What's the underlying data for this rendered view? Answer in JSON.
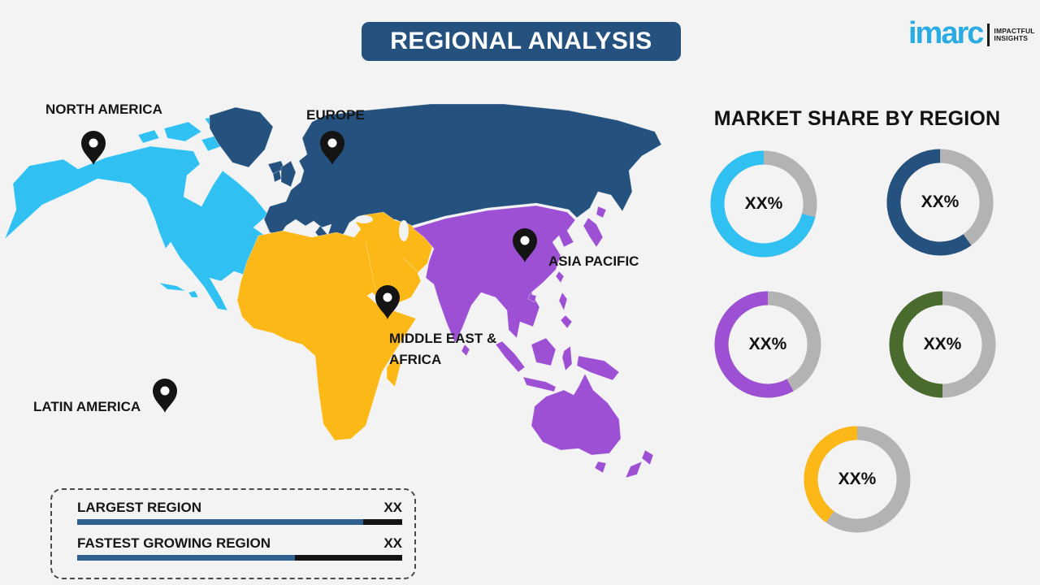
{
  "page": {
    "background": "#f2f3f2"
  },
  "title_banner": {
    "text": "REGIONAL ANALYSIS",
    "background": "#24517e",
    "text_color": "#ffffff"
  },
  "logo": {
    "brand": "imarc",
    "brand_color": "#2aace2",
    "tagline_line1": "IMPACTFUL",
    "tagline_line2": "INSIGHTS"
  },
  "map": {
    "regions": [
      {
        "id": "north-america",
        "label": "NORTH AMERICA",
        "color": "#30c1f2"
      },
      {
        "id": "europe",
        "label": "EUROPE",
        "color": "#24517e"
      },
      {
        "id": "asia-pacific",
        "label": "ASIA PACIFIC",
        "color": "#9d50d4"
      },
      {
        "id": "middle-east-africa",
        "label_line1": "MIDDLE EAST &",
        "label_line2": "AFRICA",
        "color": "#fcb816"
      },
      {
        "id": "latin-america",
        "label": "LATIN AMERICA",
        "color": "#4a6b2e"
      }
    ],
    "pin_color": "#141414"
  },
  "market_share": {
    "heading": "MARKET SHARE BY REGION",
    "track_color": "#b3b3b3",
    "donuts": [
      {
        "region": "North America",
        "value_label": "XX%",
        "color": "#30c1f2",
        "fraction": 0.71
      },
      {
        "region": "Europe",
        "value_label": "XX%",
        "color": "#24517e",
        "fraction": 0.6
      },
      {
        "region": "Asia Pacific",
        "value_label": "XX%",
        "color": "#9d50d4",
        "fraction": 0.58
      },
      {
        "region": "Latin America",
        "value_label": "XX%",
        "color": "#4a6b2e",
        "fraction": 0.5
      },
      {
        "region": "Middle East & Africa",
        "value_label": "XX%",
        "color": "#fcb816",
        "fraction": 0.4
      }
    ]
  },
  "legend": {
    "rows": [
      {
        "label": "LARGEST REGION",
        "value": "XX",
        "bar_fill": 0.88,
        "bar_color": "#2e618f",
        "bar_rest_color": "#141414"
      },
      {
        "label": "FASTEST GROWING REGION",
        "value": "XX",
        "bar_fill": 0.67,
        "bar_color": "#2e618f",
        "bar_rest_color": "#141414"
      }
    ]
  },
  "chart_data": [
    {
      "type": "pie",
      "title": "Market share — North America donut",
      "slices": [
        {
          "label": "XX%",
          "fraction": 0.71,
          "color": "#30c1f2"
        },
        {
          "label": "remainder",
          "fraction": 0.29,
          "color": "#b3b3b3"
        }
      ],
      "center_label": "XX%"
    },
    {
      "type": "pie",
      "title": "Market share — Europe donut",
      "slices": [
        {
          "label": "XX%",
          "fraction": 0.6,
          "color": "#24517e"
        },
        {
          "label": "remainder",
          "fraction": 0.4,
          "color": "#b3b3b3"
        }
      ],
      "center_label": "XX%"
    },
    {
      "type": "pie",
      "title": "Market share — Asia Pacific donut",
      "slices": [
        {
          "label": "XX%",
          "fraction": 0.58,
          "color": "#9d50d4"
        },
        {
          "label": "remainder",
          "fraction": 0.42,
          "color": "#b3b3b3"
        }
      ],
      "center_label": "XX%"
    },
    {
      "type": "pie",
      "title": "Market share — Latin America donut",
      "slices": [
        {
          "label": "XX%",
          "fraction": 0.5,
          "color": "#4a6b2e"
        },
        {
          "label": "remainder",
          "fraction": 0.5,
          "color": "#b3b3b3"
        }
      ],
      "center_label": "XX%"
    },
    {
      "type": "pie",
      "title": "Market share — Middle East & Africa donut",
      "slices": [
        {
          "label": "XX%",
          "fraction": 0.4,
          "color": "#fcb816"
        },
        {
          "label": "remainder",
          "fraction": 0.6,
          "color": "#b3b3b3"
        }
      ],
      "center_label": "XX%"
    },
    {
      "type": "table",
      "title": "Region highlights",
      "rows": [
        [
          "LARGEST REGION",
          "XX"
        ],
        [
          "FASTEST GROWING REGION",
          "XX"
        ]
      ]
    }
  ]
}
